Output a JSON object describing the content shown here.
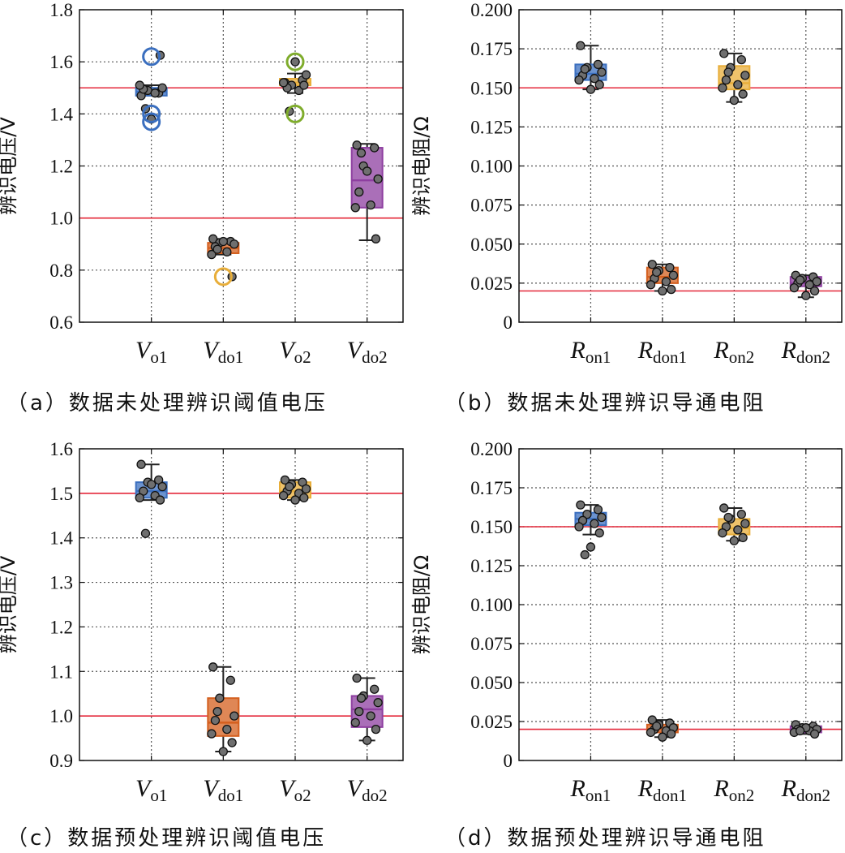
{
  "captions": {
    "a": "（a）数据未处理辨识阈值电压",
    "b": "（b）数据未处理辨识导通电阻",
    "c": "（c）数据预处理辨识阈值电压",
    "d": "（d）数据预处理辨识导通电阻"
  },
  "colors": {
    "blue": "#3b6fbf",
    "orange": "#d45f1e",
    "gold": "#e8ae3a",
    "purple": "#8e3fa0",
    "green": "#7fac2c",
    "red": "#e4283a"
  },
  "chart_data": [
    {
      "id": "a",
      "type": "box",
      "ylabel": "辨识电压/V",
      "ylim": [
        0.6,
        1.8
      ],
      "yticks": [
        0.6,
        0.8,
        1.0,
        1.2,
        1.4,
        1.6,
        1.8
      ],
      "ytick_labels": [
        "0.6",
        "0.8",
        "1.0",
        "1.2",
        "1.4",
        "1.6",
        "1.8"
      ],
      "reference_lines": [
        1.5,
        1.0
      ],
      "grid": true,
      "categories": [
        {
          "main": "V",
          "sub": "o1"
        },
        {
          "main": "V",
          "sub": "do1"
        },
        {
          "main": "V",
          "sub": "o2"
        },
        {
          "main": "V",
          "sub": "do2"
        }
      ],
      "boxes": [
        {
          "color": "blue",
          "q1": 1.47,
          "median": 1.485,
          "q3": 1.5,
          "whisker_low": 1.47,
          "whisker_high": 1.51,
          "points": [
            1.47,
            1.48,
            1.49,
            1.5,
            1.495,
            1.48,
            1.51,
            1.625,
            1.38,
            1.42
          ],
          "outliers": [
            1.62,
            1.4,
            1.37
          ]
        },
        {
          "color": "orange",
          "q1": 0.865,
          "median": 0.885,
          "q3": 0.905,
          "whisker_low": 0.86,
          "whisker_high": 0.92,
          "points": [
            0.92,
            0.91,
            0.905,
            0.9,
            0.89,
            0.87,
            0.86,
            0.775,
            0.91,
            0.88
          ],
          "outliers": [
            0.775
          ],
          "outlier_color": "gold"
        },
        {
          "color": "gold",
          "q1": 1.51,
          "median": 1.52,
          "q3": 1.535,
          "whisker_low": 1.48,
          "whisker_high": 1.555,
          "points": [
            1.52,
            1.53,
            1.51,
            1.55,
            1.5,
            1.49,
            1.52,
            1.51,
            1.6,
            1.41
          ],
          "outliers": [
            1.6,
            1.4
          ],
          "outlier_color": "green"
        },
        {
          "color": "purple",
          "q1": 1.04,
          "median": 1.145,
          "q3": 1.27,
          "whisker_low": 0.915,
          "whisker_high": 1.285,
          "points": [
            1.28,
            1.27,
            1.2,
            1.15,
            1.1,
            1.05,
            1.04,
            0.92,
            1.18,
            1.25
          ],
          "outliers": []
        }
      ]
    },
    {
      "id": "b",
      "type": "box",
      "ylabel": "辨识电阻/Ω",
      "ylim": [
        0,
        0.2
      ],
      "yticks": [
        0,
        0.025,
        0.05,
        0.075,
        0.1,
        0.125,
        0.15,
        0.175,
        0.2
      ],
      "ytick_labels": [
        "0",
        "0.025",
        "0.050",
        "0.075",
        "0.100",
        "0.125",
        "0.150",
        "0.175",
        "0.200"
      ],
      "reference_lines": [
        0.15,
        0.02
      ],
      "grid": true,
      "categories": [
        {
          "main": "R",
          "sub": "on1"
        },
        {
          "main": "R",
          "sub": "don1"
        },
        {
          "main": "R",
          "sub": "on2"
        },
        {
          "main": "R",
          "sub": "don2"
        }
      ],
      "boxes": [
        {
          "color": "blue",
          "q1": 0.155,
          "median": 0.159,
          "q3": 0.165,
          "whisker_low": 0.149,
          "whisker_high": 0.177,
          "points": [
            0.177,
            0.165,
            0.163,
            0.16,
            0.158,
            0.156,
            0.155,
            0.152,
            0.149,
            0.162
          ],
          "outliers": []
        },
        {
          "color": "orange",
          "q1": 0.025,
          "median": 0.029,
          "q3": 0.035,
          "whisker_low": 0.02,
          "whisker_high": 0.037,
          "points": [
            0.037,
            0.035,
            0.033,
            0.03,
            0.028,
            0.026,
            0.024,
            0.021,
            0.02,
            0.032
          ],
          "outliers": []
        },
        {
          "color": "gold",
          "q1": 0.149,
          "median": 0.153,
          "q3": 0.164,
          "whisker_low": 0.141,
          "whisker_high": 0.172,
          "points": [
            0.172,
            0.168,
            0.163,
            0.158,
            0.155,
            0.152,
            0.15,
            0.146,
            0.142,
            0.16
          ],
          "outliers": []
        },
        {
          "color": "purple",
          "q1": 0.023,
          "median": 0.025,
          "q3": 0.029,
          "whisker_low": 0.016,
          "whisker_high": 0.03,
          "points": [
            0.03,
            0.029,
            0.028,
            0.026,
            0.025,
            0.024,
            0.022,
            0.02,
            0.017,
            0.027
          ],
          "outliers": []
        }
      ]
    },
    {
      "id": "c",
      "type": "box",
      "ylabel": "辨识电压/V",
      "ylim": [
        0.9,
        1.6
      ],
      "yticks": [
        0.9,
        1.0,
        1.1,
        1.2,
        1.3,
        1.4,
        1.5,
        1.6
      ],
      "ytick_labels": [
        "0.9",
        "1.0",
        "1.1",
        "1.2",
        "1.3",
        "1.4",
        "1.5",
        "1.6"
      ],
      "reference_lines": [
        1.5,
        1.0
      ],
      "grid": true,
      "categories": [
        {
          "main": "V",
          "sub": "o1"
        },
        {
          "main": "V",
          "sub": "do1"
        },
        {
          "main": "V",
          "sub": "o2"
        },
        {
          "main": "V",
          "sub": "do2"
        }
      ],
      "boxes": [
        {
          "color": "blue",
          "q1": 1.49,
          "median": 1.505,
          "q3": 1.525,
          "whisker_low": 1.485,
          "whisker_high": 1.565,
          "points": [
            1.565,
            1.53,
            1.525,
            1.515,
            1.505,
            1.495,
            1.49,
            1.485,
            1.52,
            1.41
          ],
          "outliers": []
        },
        {
          "color": "orange",
          "q1": 0.955,
          "median": 0.985,
          "q3": 1.04,
          "whisker_low": 0.92,
          "whisker_high": 1.11,
          "points": [
            1.11,
            1.08,
            1.04,
            1.0,
            0.99,
            0.97,
            0.96,
            0.94,
            0.92,
            1.01
          ],
          "outliers": []
        },
        {
          "color": "gold",
          "q1": 1.49,
          "median": 1.505,
          "q3": 1.525,
          "whisker_low": 1.485,
          "whisker_high": 1.53,
          "points": [
            1.53,
            1.525,
            1.52,
            1.51,
            1.505,
            1.5,
            1.495,
            1.49,
            1.485,
            1.515
          ],
          "outliers": []
        },
        {
          "color": "purple",
          "q1": 0.975,
          "median": 1.015,
          "q3": 1.045,
          "whisker_low": 0.945,
          "whisker_high": 1.085,
          "points": [
            1.085,
            1.06,
            1.045,
            1.03,
            1.01,
            1.0,
            0.985,
            0.97,
            0.945,
            1.04
          ],
          "outliers": []
        }
      ]
    },
    {
      "id": "d",
      "type": "box",
      "ylabel": "辨识电阻/Ω",
      "ylim": [
        0,
        0.2
      ],
      "yticks": [
        0,
        0.025,
        0.05,
        0.075,
        0.1,
        0.125,
        0.15,
        0.175,
        0.2
      ],
      "ytick_labels": [
        "0",
        "0.025",
        "0.050",
        "0.075",
        "0.100",
        "0.125",
        "0.150",
        "0.175",
        "0.200"
      ],
      "reference_lines": [
        0.15,
        0.02
      ],
      "grid": true,
      "categories": [
        {
          "main": "R",
          "sub": "on1"
        },
        {
          "main": "R",
          "sub": "don1"
        },
        {
          "main": "R",
          "sub": "on2"
        },
        {
          "main": "R",
          "sub": "don2"
        }
      ],
      "boxes": [
        {
          "color": "blue",
          "q1": 0.151,
          "median": 0.155,
          "q3": 0.159,
          "whisker_low": 0.145,
          "whisker_high": 0.164,
          "points": [
            0.164,
            0.161,
            0.158,
            0.156,
            0.154,
            0.152,
            0.15,
            0.146,
            0.137,
            0.132
          ],
          "outliers": []
        },
        {
          "color": "orange",
          "q1": 0.018,
          "median": 0.02,
          "q3": 0.023,
          "whisker_low": 0.015,
          "whisker_high": 0.026,
          "points": [
            0.026,
            0.024,
            0.023,
            0.021,
            0.02,
            0.019,
            0.018,
            0.017,
            0.015,
            0.022
          ],
          "outliers": []
        },
        {
          "color": "gold",
          "q1": 0.145,
          "median": 0.149,
          "q3": 0.155,
          "whisker_low": 0.141,
          "whisker_high": 0.162,
          "points": [
            0.162,
            0.158,
            0.155,
            0.152,
            0.15,
            0.148,
            0.146,
            0.143,
            0.141,
            0.156
          ],
          "outliers": []
        },
        {
          "color": "purple",
          "q1": 0.018,
          "median": 0.02,
          "q3": 0.022,
          "whisker_low": 0.017,
          "whisker_high": 0.023,
          "points": [
            0.023,
            0.022,
            0.021,
            0.02,
            0.02,
            0.019,
            0.018,
            0.017,
            0.021,
            0.019
          ],
          "outliers": []
        }
      ]
    }
  ]
}
